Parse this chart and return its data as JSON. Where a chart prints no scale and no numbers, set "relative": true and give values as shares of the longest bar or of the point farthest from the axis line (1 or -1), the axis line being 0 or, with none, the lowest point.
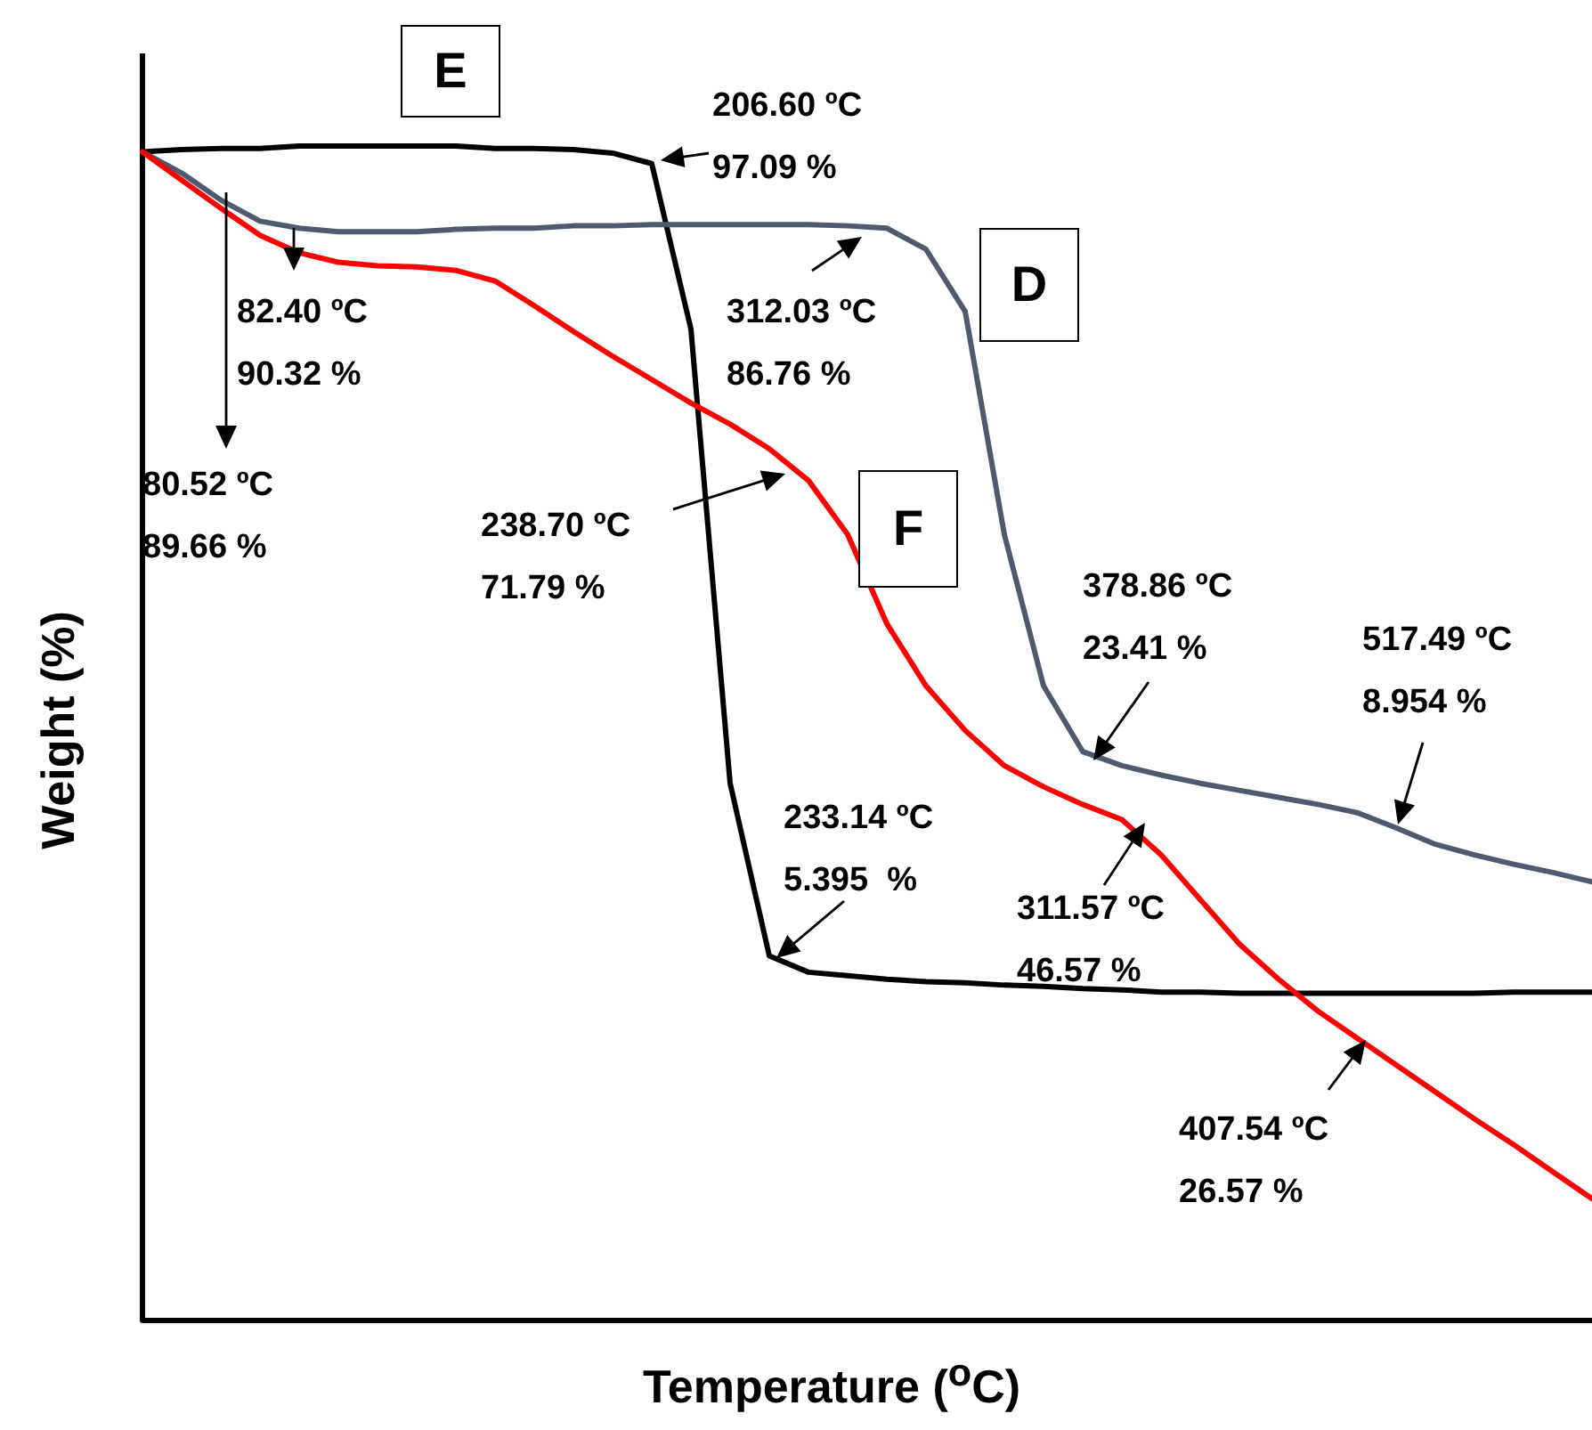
{
  "chart_data": {
    "type": "line",
    "relative": true,
    "xlabel": "Temperature ($^{o}$C)",
    "ylabel": "Weight (%)",
    "marker": "none",
    "line_style": "solid",
    "categories": [
      null,
      null,
      null,
      null,
      null,
      null,
      null,
      null,
      null,
      null,
      null,
      null,
      null,
      null,
      null,
      null,
      null,
      null,
      null,
      null,
      null,
      null,
      null,
      null,
      null,
      null,
      null,
      null,
      null,
      null,
      null,
      null,
      null,
      null,
      null,
      null,
      null,
      null
    ],
    "series": [
      {
        "name": "E",
        "color": "#000000",
        "values": [
          0.995,
          0.997,
          0.998,
          0.998,
          1.0,
          1.0,
          1.0,
          1.0,
          1.0,
          0.998,
          0.998,
          0.997,
          0.994,
          0.985,
          0.844,
          0.457,
          0.31,
          0.296,
          0.293,
          0.29,
          0.288,
          0.287,
          0.285,
          0.284,
          0.282,
          0.281,
          0.279,
          0.279,
          0.278,
          0.278,
          0.278,
          0.278,
          0.278,
          0.278,
          0.278,
          0.279,
          0.279,
          0.279
        ]
      },
      {
        "name": "D",
        "color": "#4e5a6e",
        "values": [
          0.995,
          0.977,
          0.954,
          0.936,
          0.93,
          0.927,
          0.927,
          0.927,
          0.929,
          0.93,
          0.93,
          0.932,
          0.932,
          0.933,
          0.933,
          0.933,
          0.933,
          0.933,
          0.932,
          0.93,
          0.912,
          0.859,
          0.669,
          0.54,
          0.484,
          0.472,
          0.464,
          0.457,
          0.451,
          0.445,
          0.439,
          0.432,
          0.419,
          0.405,
          0.396,
          0.388,
          0.381,
          0.373
        ]
      },
      {
        "name": "F",
        "color": "#ff0000",
        "values": [
          0.995,
          0.971,
          0.947,
          0.924,
          0.909,
          0.901,
          0.898,
          0.897,
          0.894,
          0.885,
          0.864,
          0.842,
          0.821,
          0.801,
          0.781,
          0.763,
          0.742,
          0.715,
          0.669,
          0.593,
          0.54,
          0.502,
          0.472,
          0.454,
          0.439,
          0.426,
          0.396,
          0.358,
          0.32,
          0.29,
          0.263,
          0.24,
          0.217,
          0.194,
          0.171,
          0.149,
          0.126,
          0.103
        ]
      }
    ],
    "annotations": [
      "206.60 ºC\n97.09 %",
      "312.03 ºC\n86.76 %",
      "82.40 ºC\n90.32 %",
      "80.52 ºC\n89.66 %",
      "238.70 ºC\n71.79 %",
      "378.86 ºC\n23.41 %",
      "517.49 ºC\n8.954 %",
      "233.14 ºC\n5.395  %",
      "311.57 ºC\n46.57 %",
      "407.54 ºC\n26.57 %"
    ]
  }
}
